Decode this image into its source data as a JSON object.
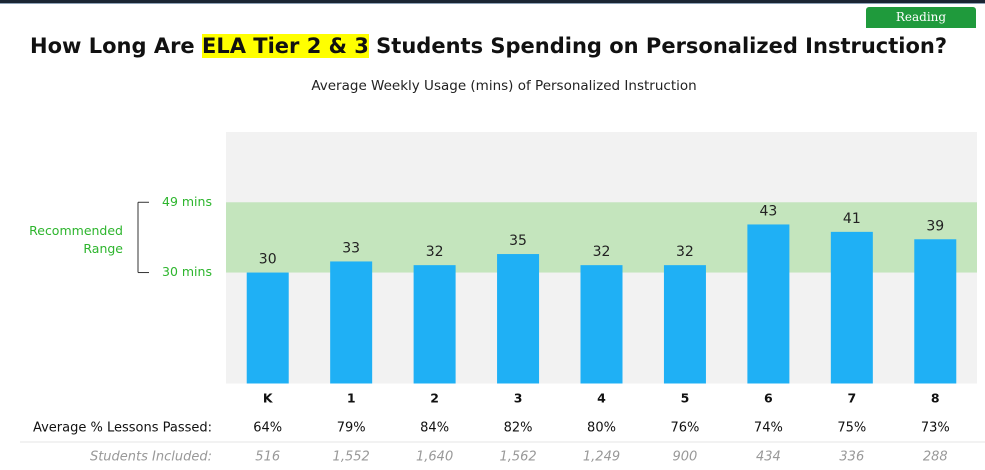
{
  "tab": "Reading",
  "chart_data": {
    "type": "bar",
    "title": {
      "before": "How Long Are ",
      "highlight": "ELA Tier 2 & 3",
      "after": " Students Spending on Personalized Instruction?"
    },
    "subtitle": "Average Weekly Usage (mins) of Personalized Instruction",
    "categories": [
      "K",
      "1",
      "2",
      "3",
      "4",
      "5",
      "6",
      "7",
      "8"
    ],
    "values": [
      30,
      33,
      32,
      35,
      32,
      32,
      43,
      41,
      39
    ],
    "color": "#1fb0f5",
    "ylim": [
      0,
      68
    ],
    "recommended_range": {
      "label": "Recommended Range",
      "low": 30,
      "high": 49,
      "low_label": "30 mins",
      "high_label": "49 mins",
      "color": "#c4e5bd"
    },
    "rows": [
      {
        "label": "Average % Lessons Passed:",
        "values": [
          "64%",
          "79%",
          "84%",
          "82%",
          "80%",
          "76%",
          "74%",
          "75%",
          "73%"
        ]
      },
      {
        "label": "Students Included:",
        "values": [
          "516",
          "1,552",
          "1,640",
          "1,562",
          "1,249",
          "900",
          "434",
          "336",
          "288"
        ]
      }
    ]
  }
}
